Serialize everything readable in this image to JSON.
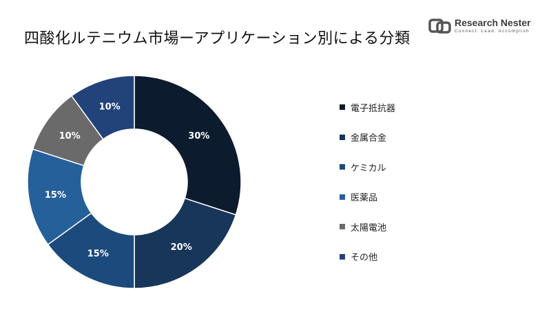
{
  "title": "四酸化ルテニウム市場ーアプリケーション別による分類",
  "logo": {
    "name": "Research Nester",
    "tagline": "Connect. Lead. Accomplish",
    "icon": "research-nester-logo-icon"
  },
  "chart_data": {
    "type": "pie",
    "donut": true,
    "categories": [
      "電子抵抗器",
      "金属合金",
      "ケミカル",
      "医薬品",
      "太陽電池",
      "その他"
    ],
    "values": [
      30,
      20,
      15,
      15,
      10,
      10
    ],
    "data_labels": [
      "30%",
      "20%",
      "15%",
      "15%",
      "10%",
      "10%"
    ],
    "colors": [
      "#0d1b2e",
      "#18365a",
      "#1c4a7c",
      "#26609a",
      "#6a6a6a",
      "#22427a"
    ],
    "legend_placement": "right"
  }
}
